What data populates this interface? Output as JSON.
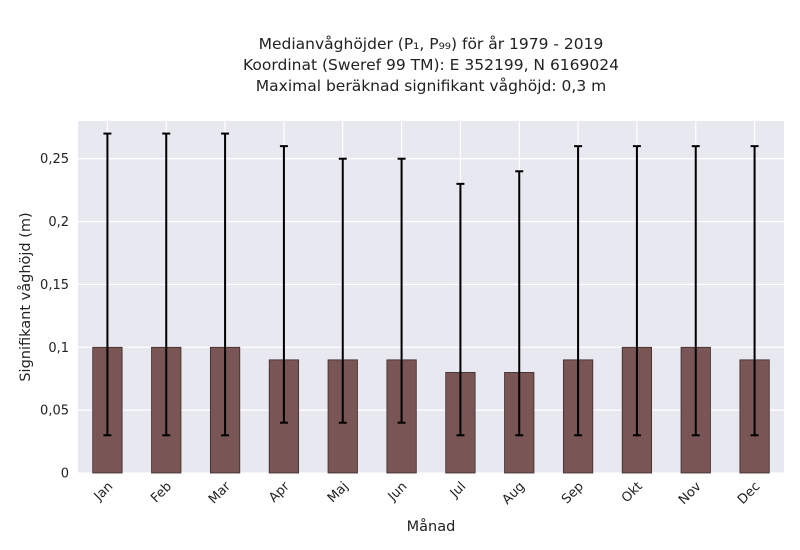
{
  "chart_data": {
    "type": "bar",
    "title_lines": [
      "Medianvåghöjder (P₁, P₉₉) för år 1979 - 2019",
      "Koordinat (Sweref 99 TM): E 352199, N 6169024",
      "Maximal beräknad signifikant våghöjd: 0,3 m"
    ],
    "xlabel": "Månad",
    "ylabel": "Signifikant våghöjd (m)",
    "categories": [
      "Jan",
      "Feb",
      "Mar",
      "Apr",
      "Maj",
      "Jun",
      "Jul",
      "Aug",
      "Sep",
      "Okt",
      "Nov",
      "Dec"
    ],
    "values": [
      0.1,
      0.1,
      0.1,
      0.09,
      0.09,
      0.09,
      0.08,
      0.08,
      0.09,
      0.1,
      0.1,
      0.09
    ],
    "error_low": [
      0.03,
      0.03,
      0.03,
      0.04,
      0.04,
      0.04,
      0.03,
      0.03,
      0.03,
      0.03,
      0.03,
      0.03
    ],
    "error_high": [
      0.27,
      0.27,
      0.27,
      0.26,
      0.25,
      0.25,
      0.23,
      0.24,
      0.26,
      0.26,
      0.26,
      0.26
    ],
    "ylim": [
      0,
      0.28
    ],
    "yticks": [
      0,
      0.05,
      0.1,
      0.15,
      0.2,
      0.25
    ],
    "ytick_labels": [
      "0",
      "0,05",
      "0,1",
      "0,15",
      "0,2",
      "0,25"
    ],
    "grid": true,
    "colors": {
      "bar": "#7a5555",
      "bar_edge": "#3a2a2a",
      "plot_background": "#e8e8f0",
      "grid": "#ffffff",
      "error_bar": "#000000"
    }
  }
}
